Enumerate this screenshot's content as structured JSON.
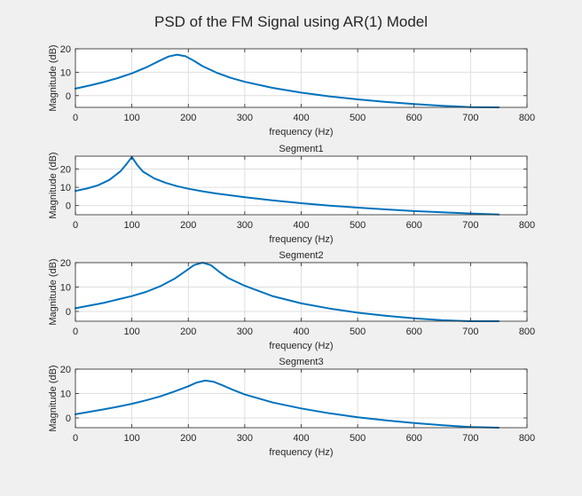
{
  "figure": {
    "title": "PSD of the FM Signal using AR(1) Model"
  },
  "colors": {
    "line": "#0072bd",
    "axes": "#262626",
    "grid": "#dfdfdf",
    "background": "#ffffff",
    "figure_background": "#f0f0f0"
  },
  "chart_data": [
    {
      "type": "line",
      "title": "",
      "xlabel": "frequency (Hz)",
      "ylabel": "Magnitude (dB)",
      "xlim": [
        0,
        800
      ],
      "ylim": [
        -5,
        20
      ],
      "xticks": [
        0,
        100,
        200,
        300,
        400,
        500,
        600,
        700,
        800
      ],
      "yticks": [
        0,
        10,
        20
      ],
      "grid": true,
      "series": [
        {
          "x": [
            0,
            25,
            50,
            75,
            100,
            125,
            150,
            165,
            180,
            195,
            210,
            225,
            250,
            275,
            300,
            350,
            400,
            450,
            500,
            550,
            600,
            650,
            700,
            750
          ],
          "y": [
            3,
            4.3,
            5.8,
            7.5,
            9.5,
            12,
            15,
            16.7,
            17.5,
            16.8,
            14.9,
            12.6,
            9.8,
            7.6,
            5.9,
            3.3,
            1.3,
            -0.3,
            -1.6,
            -2.7,
            -3.6,
            -4.3,
            -4.9,
            -5.4
          ]
        }
      ]
    },
    {
      "type": "line",
      "title": "Segment1",
      "xlabel": "frequency (Hz)",
      "ylabel": "Magnitude (dB)",
      "xlim": [
        0,
        800
      ],
      "ylim": [
        -5,
        27
      ],
      "xticks": [
        0,
        100,
        200,
        300,
        400,
        500,
        600,
        700,
        800
      ],
      "yticks": [
        0,
        10,
        20
      ],
      "grid": true,
      "series": [
        {
          "x": [
            0,
            20,
            40,
            60,
            80,
            90,
            100,
            110,
            120,
            140,
            160,
            180,
            200,
            225,
            250,
            300,
            350,
            400,
            450,
            500,
            550,
            600,
            650,
            700,
            750
          ],
          "y": [
            8,
            9.3,
            11.1,
            14,
            18.8,
            22.5,
            26.5,
            22,
            18.5,
            14.8,
            12.4,
            10.6,
            9.2,
            7.8,
            6.6,
            4.6,
            2.8,
            1.3,
            0,
            -1.1,
            -2.1,
            -3,
            -3.7,
            -4.3,
            -4.9
          ]
        }
      ]
    },
    {
      "type": "line",
      "title": "Segment2",
      "xlabel": "frequency (Hz)",
      "ylabel": "Magnitude (dB)",
      "xlim": [
        0,
        800
      ],
      "ylim": [
        -4,
        20
      ],
      "xticks": [
        0,
        100,
        200,
        300,
        400,
        500,
        600,
        700,
        800
      ],
      "yticks": [
        0,
        10,
        20
      ],
      "grid": true,
      "series": [
        {
          "x": [
            0,
            25,
            50,
            75,
            100,
            125,
            150,
            175,
            195,
            210,
            225,
            240,
            255,
            270,
            300,
            350,
            400,
            450,
            500,
            550,
            600,
            650,
            700,
            750
          ],
          "y": [
            1.3,
            2.4,
            3.5,
            4.9,
            6.3,
            8,
            10.3,
            13.3,
            16.5,
            19,
            20.3,
            19,
            16.2,
            13.8,
            10.5,
            6.2,
            3.3,
            1.2,
            -0.5,
            -1.8,
            -2.8,
            -3.6,
            -4.3,
            -4.8
          ]
        }
      ]
    },
    {
      "type": "line",
      "title": "Segment3",
      "xlabel": "frequency (Hz)",
      "ylabel": "Magnitude (dB)",
      "xlim": [
        0,
        800
      ],
      "ylim": [
        -4,
        20
      ],
      "xticks": [
        0,
        100,
        200,
        300,
        400,
        500,
        600,
        700,
        800
      ],
      "yticks": [
        0,
        10,
        20
      ],
      "grid": true,
      "series": [
        {
          "x": [
            0,
            25,
            50,
            75,
            100,
            125,
            150,
            175,
            200,
            215,
            230,
            245,
            260,
            280,
            300,
            350,
            400,
            450,
            500,
            550,
            600,
            650,
            700,
            750
          ],
          "y": [
            1.5,
            2.5,
            3.5,
            4.6,
            5.8,
            7.2,
            8.8,
            10.8,
            13,
            14.5,
            15.3,
            14.8,
            13.4,
            11.4,
            9.6,
            6.3,
            3.9,
            1.9,
            0.3,
            -1,
            -2.1,
            -3,
            -3.7,
            -4.3
          ]
        }
      ]
    }
  ]
}
